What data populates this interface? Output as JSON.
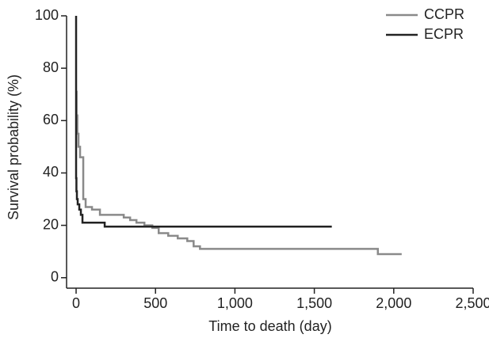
{
  "chart_data": {
    "type": "line",
    "xlabel": "Time to death (day)",
    "ylabel": "Survival probability (%)",
    "xlim": [
      -60,
      2500
    ],
    "ylim": [
      -4,
      100
    ],
    "xticks": [
      0,
      500,
      {
        "value": 1000,
        "label": "1,000"
      },
      {
        "value": 1500,
        "label": "1,500"
      },
      {
        "value": 2000,
        "label": "2,000"
      },
      {
        "value": 2500,
        "label": "2,500"
      }
    ],
    "yticks": [
      0,
      20,
      40,
      60,
      80,
      100
    ],
    "legend": "top-right",
    "series": [
      {
        "name": "CCPR",
        "color": "#8a8a8a",
        "x": [
          0,
          3,
          3,
          8,
          8,
          15,
          15,
          25,
          25,
          45,
          45,
          60,
          60,
          100,
          100,
          150,
          150,
          300,
          300,
          340,
          340,
          380,
          380,
          430,
          430,
          480,
          480,
          520,
          520,
          580,
          580,
          640,
          640,
          700,
          700,
          740,
          740,
          780,
          780,
          1900,
          1900,
          2050
        ],
        "values": [
          71,
          71,
          62,
          62,
          55,
          55,
          50,
          50,
          46,
          46,
          30,
          30,
          27,
          27,
          26,
          26,
          24,
          24,
          23,
          23,
          22,
          22,
          21,
          21,
          20,
          20,
          19,
          19,
          17,
          17,
          16,
          16,
          15,
          15,
          14,
          14,
          12,
          12,
          11,
          11,
          9,
          9
        ]
      },
      {
        "name": "ECPR",
        "color": "#222222",
        "x": [
          0,
          0,
          2,
          2,
          5,
          5,
          10,
          10,
          20,
          20,
          30,
          30,
          40,
          40,
          180,
          180,
          1610
        ],
        "values": [
          100,
          38,
          38,
          33,
          33,
          30,
          30,
          28,
          28,
          26,
          26,
          24,
          24,
          21,
          21,
          19.5,
          19.5
        ]
      }
    ]
  }
}
